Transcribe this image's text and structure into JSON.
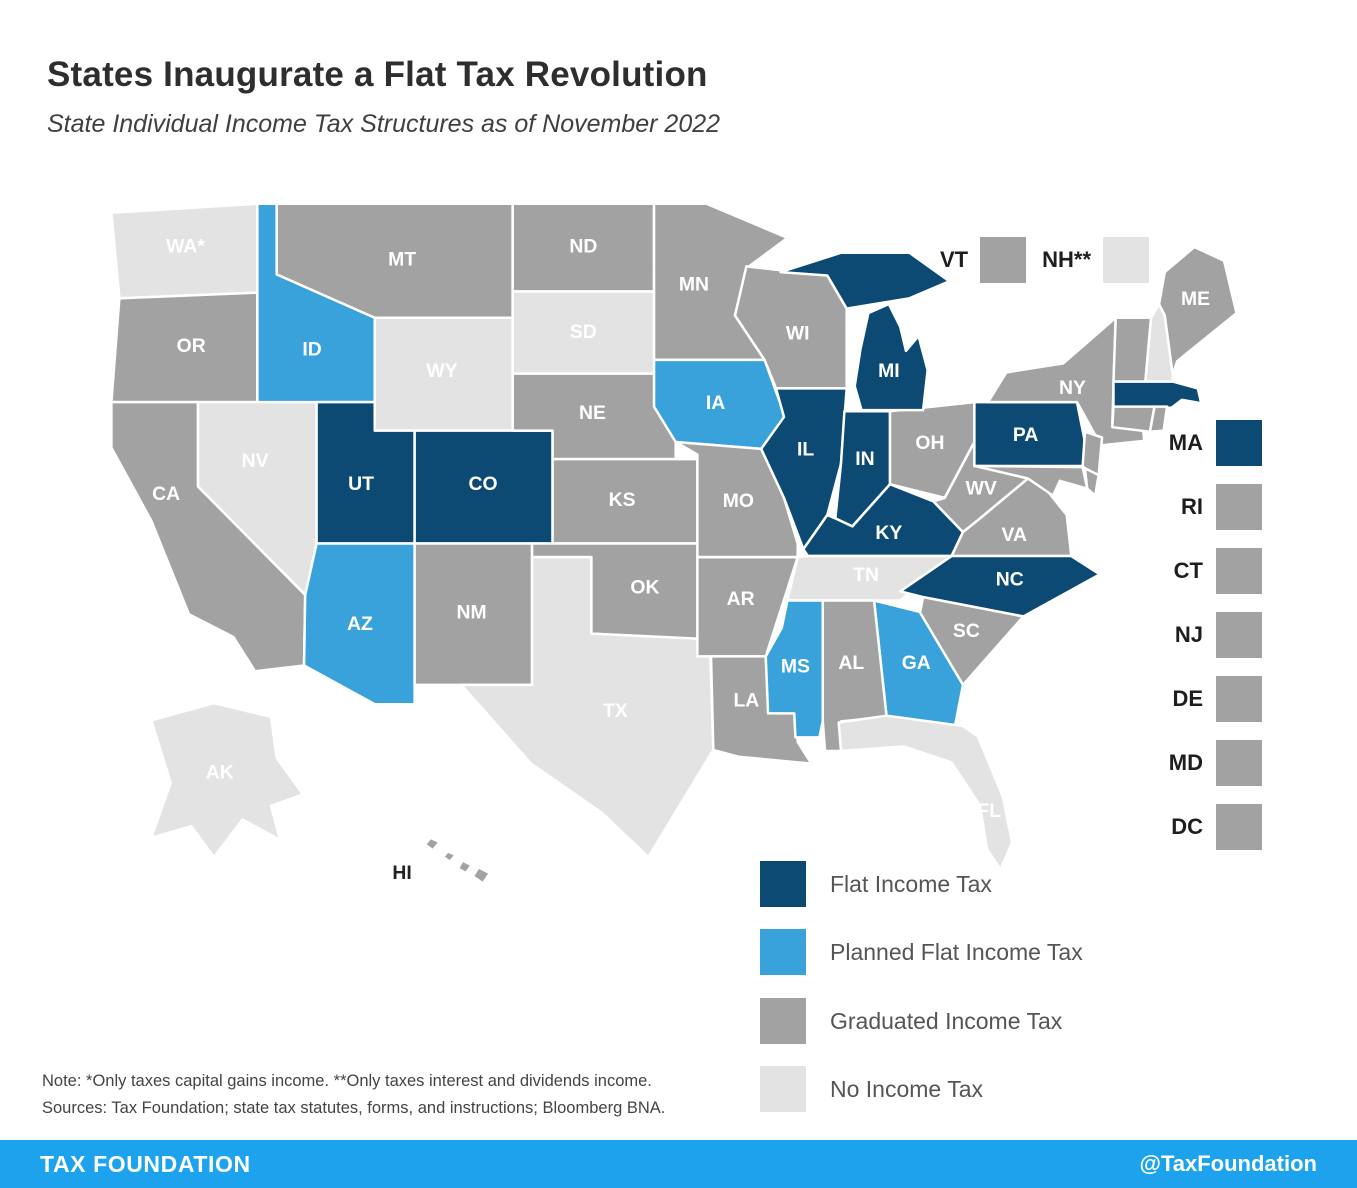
{
  "title": "States Inaugurate a Flat Tax Revolution",
  "subtitle": "State Individual Income Tax Structures as of November 2022",
  "colors": {
    "flat": "#0D4A73",
    "planned": "#3AA2DB",
    "graduated": "#A2A2A2",
    "none": "#E3E3E3",
    "footer": "#1DA3EE"
  },
  "legend": [
    {
      "label": "Flat Income Tax",
      "category": "flat"
    },
    {
      "label": "Planned Flat Income Tax",
      "category": "planned"
    },
    {
      "label": "Graduated Income Tax",
      "category": "graduated"
    },
    {
      "label": "No Income Tax",
      "category": "none"
    }
  ],
  "side_legend_top": [
    {
      "label": "VT",
      "category": "graduated"
    },
    {
      "label": "NH**",
      "category": "none"
    }
  ],
  "side_legend": [
    {
      "label": "MA",
      "category": "flat"
    },
    {
      "label": "RI",
      "category": "graduated"
    },
    {
      "label": "CT",
      "category": "graduated"
    },
    {
      "label": "NJ",
      "category": "graduated"
    },
    {
      "label": "DE",
      "category": "graduated"
    },
    {
      "label": "MD",
      "category": "graduated"
    },
    {
      "label": "DC",
      "category": "graduated"
    }
  ],
  "map_states": [
    {
      "id": "WA",
      "label": "WA*",
      "category": "none"
    },
    {
      "id": "OR",
      "label": "OR",
      "category": "graduated"
    },
    {
      "id": "CA",
      "label": "CA",
      "category": "graduated"
    },
    {
      "id": "NV",
      "label": "NV",
      "category": "none"
    },
    {
      "id": "ID",
      "label": "ID",
      "category": "planned"
    },
    {
      "id": "MT",
      "label": "MT",
      "category": "graduated"
    },
    {
      "id": "WY",
      "label": "WY",
      "category": "none"
    },
    {
      "id": "UT",
      "label": "UT",
      "category": "flat"
    },
    {
      "id": "CO",
      "label": "CO",
      "category": "flat"
    },
    {
      "id": "AZ",
      "label": "AZ",
      "category": "planned"
    },
    {
      "id": "NM",
      "label": "NM",
      "category": "graduated"
    },
    {
      "id": "ND",
      "label": "ND",
      "category": "graduated"
    },
    {
      "id": "SD",
      "label": "SD",
      "category": "none"
    },
    {
      "id": "NE",
      "label": "NE",
      "category": "graduated"
    },
    {
      "id": "KS",
      "label": "KS",
      "category": "graduated"
    },
    {
      "id": "OK",
      "label": "OK",
      "category": "graduated"
    },
    {
      "id": "TX",
      "label": "TX",
      "category": "none"
    },
    {
      "id": "MN",
      "label": "MN",
      "category": "graduated"
    },
    {
      "id": "IA",
      "label": "IA",
      "category": "planned"
    },
    {
      "id": "MO",
      "label": "MO",
      "category": "graduated"
    },
    {
      "id": "AR",
      "label": "AR",
      "category": "graduated"
    },
    {
      "id": "LA",
      "label": "LA",
      "category": "graduated"
    },
    {
      "id": "WI",
      "label": "WI",
      "category": "graduated"
    },
    {
      "id": "IL",
      "label": "IL",
      "category": "flat"
    },
    {
      "id": "IN",
      "label": "IN",
      "category": "flat"
    },
    {
      "id": "OH",
      "label": "OH",
      "category": "graduated"
    },
    {
      "id": "MI",
      "label": "MI",
      "category": "flat"
    },
    {
      "id": "KY",
      "label": "KY",
      "category": "flat"
    },
    {
      "id": "TN",
      "label": "TN",
      "category": "none"
    },
    {
      "id": "WV",
      "label": "WV",
      "category": "graduated"
    },
    {
      "id": "VA",
      "label": "VA",
      "category": "graduated"
    },
    {
      "id": "NC",
      "label": "NC",
      "category": "flat"
    },
    {
      "id": "SC",
      "label": "SC",
      "category": "graduated"
    },
    {
      "id": "GA",
      "label": "GA",
      "category": "planned"
    },
    {
      "id": "AL",
      "label": "AL",
      "category": "graduated"
    },
    {
      "id": "MS",
      "label": "MS",
      "category": "planned"
    },
    {
      "id": "FL",
      "label": "FL",
      "category": "none"
    },
    {
      "id": "PA",
      "label": "PA",
      "category": "flat"
    },
    {
      "id": "NY",
      "label": "NY",
      "category": "graduated"
    },
    {
      "id": "VT",
      "label": "",
      "category": "graduated"
    },
    {
      "id": "NH",
      "label": "",
      "category": "none"
    },
    {
      "id": "ME",
      "label": "ME",
      "category": "graduated"
    },
    {
      "id": "MA",
      "label": "",
      "category": "flat"
    },
    {
      "id": "CT",
      "label": "",
      "category": "graduated"
    },
    {
      "id": "RI",
      "label": "",
      "category": "graduated"
    },
    {
      "id": "NJ",
      "label": "",
      "category": "graduated"
    },
    {
      "id": "MD",
      "label": "",
      "category": "graduated"
    },
    {
      "id": "DE",
      "label": "",
      "category": "graduated"
    },
    {
      "id": "AK",
      "label": "AK",
      "category": "none"
    },
    {
      "id": "HI",
      "label": "HI",
      "category": "graduated"
    }
  ],
  "notes": {
    "line1": "Note: *Only taxes capital gains income. **Only taxes interest and dividends income.",
    "line2": "Sources: Tax Foundation; state tax statutes, forms, and instructions; Bloomberg BNA."
  },
  "footer": {
    "left": "TAX FOUNDATION",
    "right": "@TaxFoundation"
  },
  "chart_data": {
    "type": "heatmap",
    "subtype": "us-state-choropleth",
    "title": "States Inaugurate a Flat Tax Revolution",
    "subtitle": "State Individual Income Tax Structures as of November 2022",
    "legend_position": "bottom",
    "categories": [
      "Flat Income Tax",
      "Planned Flat Income Tax",
      "Graduated Income Tax",
      "No Income Tax"
    ],
    "series": [
      {
        "name": "Flat Income Tax",
        "values": [
          "CO",
          "IL",
          "IN",
          "KY",
          "MA",
          "MI",
          "NC",
          "PA",
          "UT"
        ]
      },
      {
        "name": "Planned Flat Income Tax",
        "values": [
          "AZ",
          "GA",
          "IA",
          "ID",
          "MS"
        ]
      },
      {
        "name": "Graduated Income Tax",
        "values": [
          "AL",
          "AR",
          "CA",
          "CT",
          "DC",
          "DE",
          "HI",
          "KS",
          "LA",
          "MD",
          "ME",
          "MN",
          "MO",
          "MT",
          "ND",
          "NE",
          "NJ",
          "NM",
          "NY",
          "OH",
          "OK",
          "OR",
          "RI",
          "SC",
          "VA",
          "VT",
          "WV",
          "WI"
        ]
      },
      {
        "name": "No Income Tax",
        "values": [
          "AK",
          "FL",
          "NV",
          "NH",
          "SD",
          "TN",
          "TX",
          "WA",
          "WY"
        ]
      }
    ],
    "annotations": [
      "*Only taxes capital gains income.",
      "**Only taxes interest and dividends income."
    ]
  }
}
